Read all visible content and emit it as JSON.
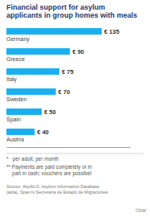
{
  "chart_data": {
    "type": "bar",
    "orientation": "horizontal",
    "title": "Financial support for asylum\napplicants in group homes with meals",
    "categories": [
      "Germany",
      "Greece",
      "Italy",
      "Sweden",
      "Spain",
      "Austria"
    ],
    "values": [
      135,
      90,
      75,
      70,
      50,
      40
    ],
    "value_labels": [
      "€ 135",
      "€ 90",
      "€ 75",
      "€ 70",
      "€ 50",
      "€ 40"
    ],
    "data_labels": true,
    "color": "#1ab0f0",
    "xlim": [
      0,
      175
    ],
    "tick_labels": false,
    "grid": false,
    "annotations": [
      "*   per adult, per month",
      "** Payments are paid completely or in\n    part in cash; vouchers are possibel",
      "Source: AsylbLG, Asylum Information Database\n(aida), Spain’s Secretaria de Estado de Migraciones",
      "©DW"
    ]
  }
}
